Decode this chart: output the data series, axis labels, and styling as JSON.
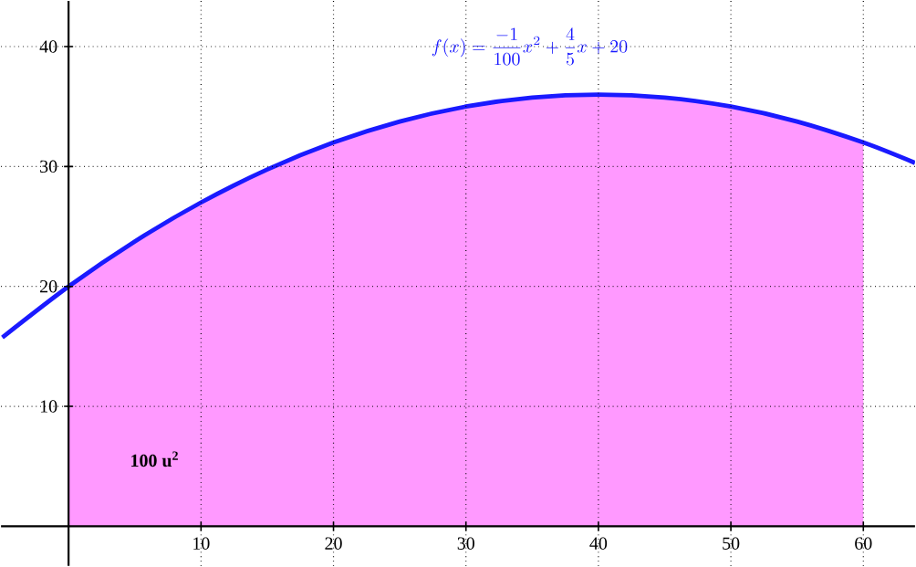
{
  "chart_data": {
    "type": "line",
    "xlim": [
      -5.1,
      63.9
    ],
    "ylim": [
      -3.3,
      43.8
    ],
    "xticks": [
      10,
      20,
      30,
      40,
      50,
      60
    ],
    "yticks": [
      10,
      20,
      30,
      40
    ],
    "grid": true,
    "series": [
      {
        "type": "area",
        "color": "#ff99ff",
        "x": [
          0,
          5,
          10,
          15,
          20,
          25,
          30,
          35,
          40,
          45,
          50,
          55,
          60
        ],
        "values": [
          20,
          23.75,
          27,
          29.75,
          32,
          33.75,
          35,
          35.75,
          36,
          35.75,
          35,
          33.75,
          32
        ]
      },
      {
        "color": "#1a1aff",
        "x": [
          -5,
          0,
          5,
          10,
          15,
          20,
          25,
          30,
          35,
          40,
          45,
          50,
          55,
          60,
          63.9
        ],
        "values": [
          15.75,
          20,
          23.75,
          27,
          29.75,
          32,
          33.75,
          35,
          35.75,
          36,
          35.75,
          35,
          33.75,
          32,
          30.3
        ]
      }
    ],
    "annotations": [
      "f(x)=\\frac{-1}{100}x^{2}+\\frac{4}{5}x+20",
      "100 u$^{2}$"
    ]
  }
}
